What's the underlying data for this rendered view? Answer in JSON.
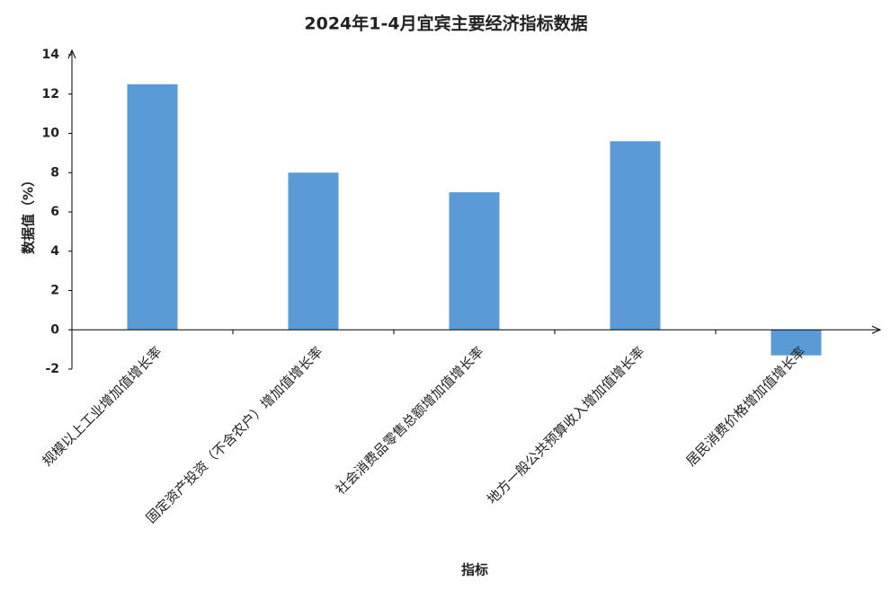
{
  "chart_data": {
    "type": "bar",
    "title": "2024年1-4月宜宾主要经济指标数据",
    "x_label": "指标",
    "y_label": "数据值（%）",
    "categories": [
      "规模以上工业增加值增长率",
      "固定资产投资（不含农户）增加值增长率",
      "社会消费品零售总额增加值增长率",
      "地方一般公共预算收入增加值增长率",
      "居民消费价格增加值增长率"
    ],
    "values": [
      12.5,
      8.0,
      7.0,
      9.6,
      -1.3
    ],
    "color": "#5b9bd5",
    "ylim": [
      -2,
      14
    ],
    "yticks": [
      -2,
      0,
      2,
      4,
      6,
      8,
      10,
      12,
      14
    ],
    "grid": false
  }
}
